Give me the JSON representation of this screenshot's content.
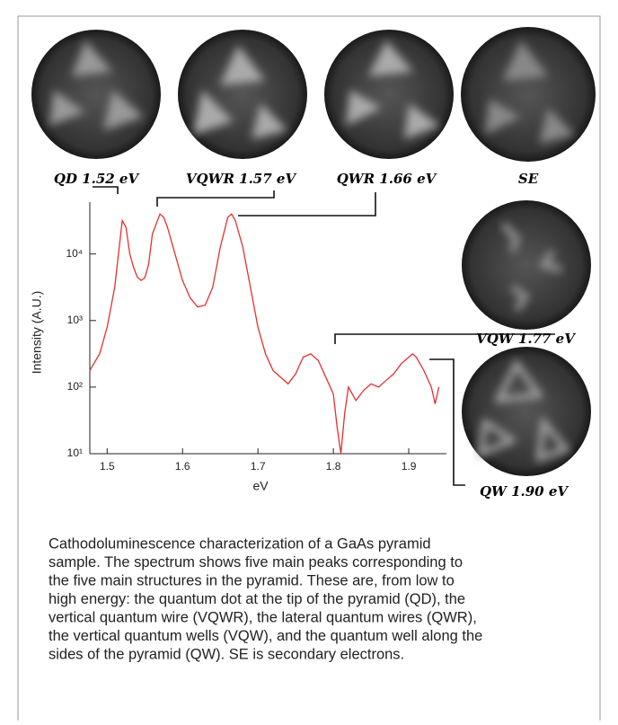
{
  "chart_data": {
    "type": "line",
    "xlabel": "eV",
    "ylabel": "Intensity (A.U.)",
    "log_y": true,
    "x": [
      1.477,
      1.49,
      1.5,
      1.51,
      1.515,
      1.52,
      1.525,
      1.53,
      1.535,
      1.54,
      1.545,
      1.55,
      1.555,
      1.56,
      1.57,
      1.575,
      1.58,
      1.59,
      1.6,
      1.61,
      1.62,
      1.63,
      1.64,
      1.65,
      1.66,
      1.665,
      1.67,
      1.68,
      1.69,
      1.7,
      1.71,
      1.72,
      1.73,
      1.74,
      1.75,
      1.76,
      1.77,
      1.78,
      1.79,
      1.8,
      1.805,
      1.81,
      1.815,
      1.82,
      1.83,
      1.84,
      1.85,
      1.86,
      1.87,
      1.88,
      1.89,
      1.9,
      1.905,
      1.91,
      1.92,
      1.93,
      1.935,
      1.94
    ],
    "series": [
      {
        "color": "#e53030",
        "values": [
          178,
          316,
          794,
          3162,
          10000,
          31623,
          25119,
          10000,
          6300,
          4500,
          4000,
          4400,
          7000,
          19953,
          39811,
          35481,
          25119,
          10000,
          3981,
          2200,
          1600,
          1700,
          3162,
          12589,
          35481,
          39811,
          31623,
          12589,
          3162,
          794,
          316,
          178,
          141,
          112,
          158,
          282,
          316,
          251,
          141,
          79,
          25,
          10,
          40,
          100,
          63,
          89,
          112,
          100,
          126,
          158,
          224,
          282,
          316,
          282,
          178,
          100,
          56,
          100
        ]
      }
    ],
    "xlim": [
      1.477,
      1.95
    ],
    "xticks": [
      1.5,
      1.6,
      1.7,
      1.8,
      1.9
    ],
    "ylim": [
      10,
      60000
    ],
    "yticks": [
      {
        "value": 10,
        "label": "10¹"
      },
      {
        "value": 100,
        "label": "10²"
      },
      {
        "value": 1000,
        "label": "10³"
      },
      {
        "value": 10000,
        "label": "10⁴"
      }
    ],
    "image_labels": [
      "QD 1.52 eV",
      "VQWR 1.57 eV",
      "QWR 1.66 eV",
      "SE",
      "VQW 1.77 eV",
      "QW 1.90 eV"
    ],
    "caption": [
      "Cathodoluminescence characterization of a GaAs pyramid",
      "sample. The spectrum shows five main peaks corresponding to",
      "the five main structures in the pyramid. These are, from low to",
      "high energy: the quantum dot at the tip of the pyramid (QD), the",
      "vertical quantum wire (VQWR), the lateral quantum wires (QWR),",
      "the vertical quantum wells (VQW), and the quantum well along the",
      "sides of the pyramid (QW). SE is secondary electrons."
    ]
  }
}
